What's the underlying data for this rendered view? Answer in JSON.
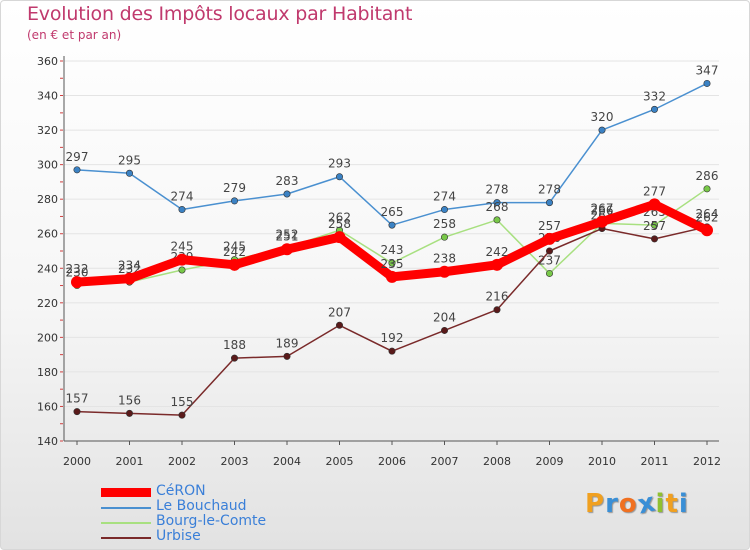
{
  "header": {
    "title": "Evolution des Impôts locaux par Habitant",
    "subtitle": "(en € et par an)"
  },
  "logo": {
    "text": "Proxiti",
    "letters": [
      "P",
      "r",
      "o",
      "x",
      "i",
      "t",
      "i"
    ],
    "colors": [
      "#f0a020",
      "#3a8fd6",
      "#f07020",
      "#3a8fd6",
      "#90c030",
      "#f0a020",
      "#3a8fd6"
    ]
  },
  "chart_data": {
    "type": "line",
    "title": "Evolution des Impôts locaux par Habitant",
    "subtitle": "(en € et par an)",
    "xlabel": "",
    "ylabel": "",
    "ylim": [
      140,
      360
    ],
    "yticks": [
      140,
      160,
      180,
      200,
      220,
      240,
      260,
      280,
      300,
      320,
      340,
      360
    ],
    "grid": "horizontal",
    "legend_position": "bottom-left",
    "categories": [
      "2000",
      "2001",
      "2002",
      "2003",
      "2004",
      "2005",
      "2006",
      "2007",
      "2008",
      "2009",
      "2010",
      "2011",
      "2012"
    ],
    "series": [
      {
        "name": "Le Bouchaud",
        "color": "#4a90d0",
        "marker": "#3b82c4",
        "values": [
          297,
          295,
          274,
          279,
          283,
          293,
          265,
          274,
          278,
          278,
          320,
          332,
          347
        ]
      },
      {
        "name": "Bourg-le-Comte",
        "color": "#a8e080",
        "marker": "#78c848",
        "values": [
          230,
          232,
          239,
          245,
          252,
          262,
          243,
          258,
          268,
          237,
          266,
          265,
          286
        ]
      },
      {
        "name": "Urbise",
        "color": "#7a2a2a",
        "marker": "#5a1a1a",
        "values": [
          157,
          156,
          155,
          188,
          189,
          207,
          192,
          204,
          216,
          250,
          263,
          257,
          264
        ]
      },
      {
        "name": "CéRON",
        "color": "#ff0000",
        "marker": "#ff0000",
        "values": [
          232,
          234,
          245,
          242,
          251,
          258,
          235,
          238,
          242,
          257,
          267,
          277,
          262
        ]
      }
    ],
    "legend": [
      {
        "name": "CéRON",
        "color": "#ff0000",
        "label_color": "#3a7fd8"
      },
      {
        "name": "Le Bouchaud",
        "color": "#4a90d0",
        "label_color": "#3a7fd8"
      },
      {
        "name": "Bourg-le-Comte",
        "color": "#a8e080",
        "label_color": "#3a7fd8"
      },
      {
        "name": "Urbise",
        "color": "#7a2a2a",
        "label_color": "#3a7fd8"
      }
    ]
  }
}
